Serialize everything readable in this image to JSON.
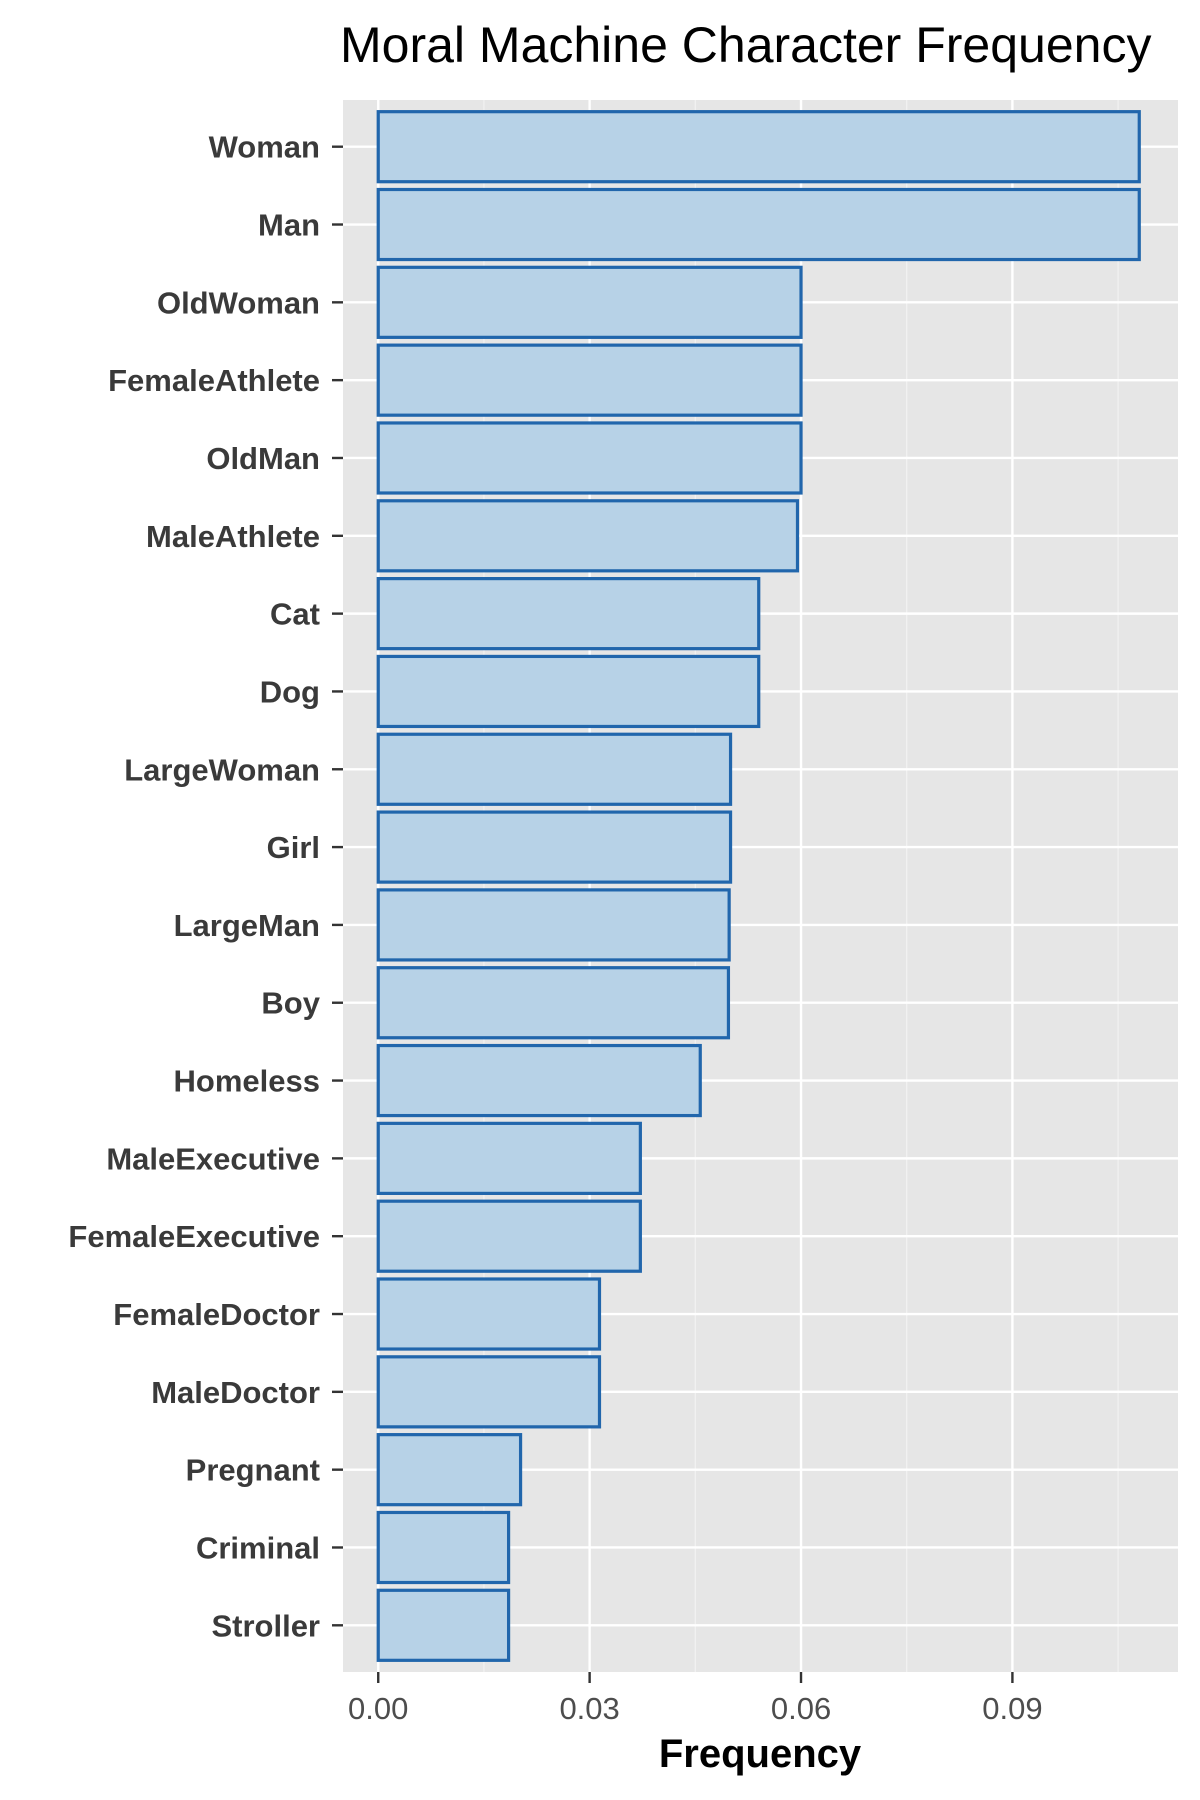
{
  "chart_data": {
    "type": "bar",
    "orientation": "horizontal",
    "title": "Moral Machine Character Frequency",
    "xlabel": "Frequency",
    "ylabel": "",
    "xlim": [
      -0.005,
      0.1135
    ],
    "x_ticks": [
      0.0,
      0.03,
      0.06,
      0.09
    ],
    "x_tick_labels": [
      "0.00",
      "0.03",
      "0.06",
      "0.09"
    ],
    "grid": true,
    "legend": "none",
    "categories": [
      "Woman",
      "Man",
      "OldWoman",
      "FemaleAthlete",
      "OldMan",
      "MaleAthlete",
      "Cat",
      "Dog",
      "LargeWoman",
      "Girl",
      "LargeMan",
      "Boy",
      "Homeless",
      "MaleExecutive",
      "FemaleExecutive",
      "FemaleDoctor",
      "MaleDoctor",
      "Pregnant",
      "Criminal",
      "Stroller"
    ],
    "values": [
      0.108,
      0.108,
      0.06,
      0.06,
      0.06,
      0.0595,
      0.054,
      0.054,
      0.05,
      0.05,
      0.0498,
      0.0497,
      0.0457,
      0.0372,
      0.0372,
      0.0314,
      0.0314,
      0.0202,
      0.0185,
      0.0185
    ],
    "colors": {
      "bar_fill": "#b7d2e7",
      "bar_stroke": "#2166ac",
      "panel_background": "#e6e6e6",
      "grid_major": "#ffffff",
      "grid_minor": "#f2f2f2"
    }
  }
}
